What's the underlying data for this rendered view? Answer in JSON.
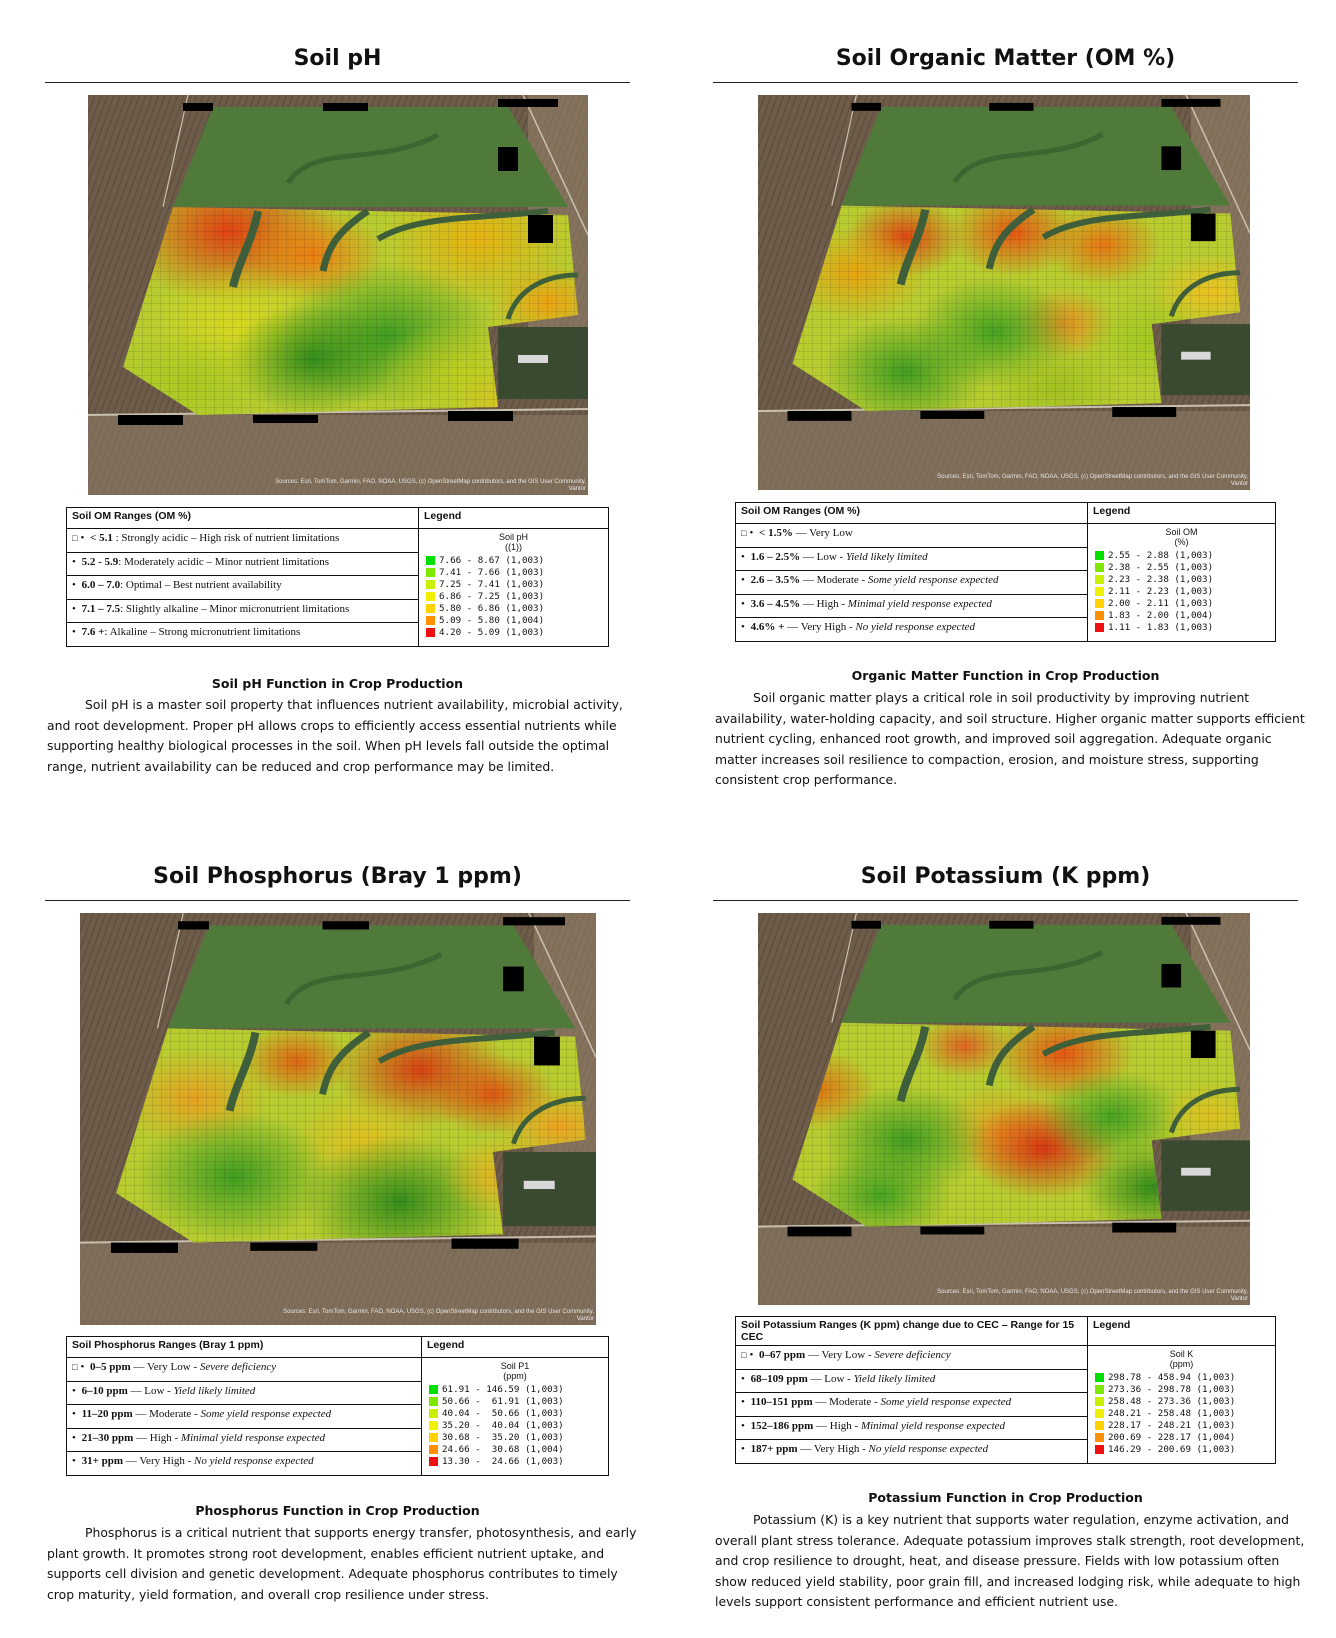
{
  "panels": [
    {
      "title": "Soil pH",
      "ranges_header": "Soil OM Ranges (OM %)",
      "legend_header": "Legend",
      "legend_title": "Soil pH",
      "legend_unit": "((1))",
      "rows": [
        {
          "glyph": "□",
          "bold": "< 5.1",
          "rest": " : Strongly acidic – High risk of nutrient limitations",
          "italic": ""
        },
        {
          "glyph": "",
          "bold": "5.2 - 5.9",
          "rest": ": Moderately acidic – Minor nutrient limitations",
          "italic": ""
        },
        {
          "glyph": "",
          "bold": "6.0 – 7.0",
          "rest": ": Optimal – Best nutrient availability",
          "italic": ""
        },
        {
          "glyph": "",
          "bold": "7.1 – 7.5",
          "rest": ": Slightly alkaline  – Minor micronutrient limitations",
          "italic": ""
        },
        {
          "glyph": "",
          "bold": "7.6 +",
          "rest": ": Alkaline – Strong micronutrient limitations",
          "italic": ""
        }
      ],
      "legend": [
        {
          "color": "#00e000",
          "label": "7.66 - 8.67 (1,003)"
        },
        {
          "color": "#7fe800",
          "label": "7.41 - 7.66 (1,003)"
        },
        {
          "color": "#c8f000",
          "label": "7.25 - 7.41 (1,003)"
        },
        {
          "color": "#f0f000",
          "label": "6.86 - 7.25 (1,003)"
        },
        {
          "color": "#ffd200",
          "label": "5.80 - 6.86 (1,003)"
        },
        {
          "color": "#ff9000",
          "label": "5.09 - 5.80 (1,004)"
        },
        {
          "color": "#ee1010",
          "label": "4.20 - 5.09 (1,003)"
        }
      ],
      "section_title": "Soil pH Function in Crop Production",
      "section_body": "Soil pH is a master soil property that influences nutrient availability, microbial activity, and root development. Proper pH allows crops to efficiently access essential nutrients while supporting healthy biological processes in the soil. When pH levels fall outside the optimal range, nutrient availability can be reduced and crop performance may be limited.",
      "attribution": "Sources: Esri, TomTom, Garmin, FAO, NOAA, USGS, (c) OpenStreetMap contributors, and the GIS User Community, Vantor"
    },
    {
      "title": "Soil Organic Matter (OM %)",
      "ranges_header": "Soil OM Ranges (OM %)",
      "legend_header": "Legend",
      "legend_title": "Soil OM",
      "legend_unit": "(%)",
      "rows": [
        {
          "glyph": "□",
          "bold": "< 1.5%",
          "rest": " — Very Low",
          "italic": ""
        },
        {
          "glyph": "",
          "bold": "1.6 – 2.5%",
          "rest": " — Low - ",
          "italic": "Yield likely limited"
        },
        {
          "glyph": "",
          "bold": "2.6 – 3.5%",
          "rest": " — Moderate - ",
          "italic": "Some yield response expected"
        },
        {
          "glyph": "",
          "bold": "3.6 – 4.5%",
          "rest": " — High - ",
          "italic": "Minimal yield response expected"
        },
        {
          "glyph": "",
          "bold": "4.6% +",
          "rest": " — Very High - ",
          "italic": "No yield response expected"
        }
      ],
      "legend": [
        {
          "color": "#00e000",
          "label": "2.55 - 2.88 (1,003)"
        },
        {
          "color": "#7fe800",
          "label": "2.38 - 2.55 (1,003)"
        },
        {
          "color": "#c8f000",
          "label": "2.23 - 2.38 (1,003)"
        },
        {
          "color": "#f0f000",
          "label": "2.11 - 2.23 (1,003)"
        },
        {
          "color": "#ffd200",
          "label": "2.00 - 2.11 (1,003)"
        },
        {
          "color": "#ff9000",
          "label": "1.83 - 2.00 (1,004)"
        },
        {
          "color": "#ee1010",
          "label": "1.11 - 1.83 (1,003)"
        }
      ],
      "section_title": "Organic Matter Function in Crop Production",
      "section_body": "Soil organic matter plays a critical role in soil productivity by improving nutrient availability, water-holding capacity, and soil structure. Higher organic matter supports efficient nutrient cycling, enhanced root growth, and improved soil aggregation. Adequate organic matter increases soil resilience to compaction, erosion, and moisture stress, supporting consistent crop performance.",
      "attribution": "Sources: Esri, TomTom, Garmin, FAO, NOAA, USGS, (c) OpenStreetMap contributors, and the GIS User Community, Vantor"
    },
    {
      "title": "Soil Phosphorus (Bray 1 ppm)",
      "ranges_header": "Soil Phosphorus Ranges (Bray 1 ppm)",
      "legend_header": "Legend",
      "legend_title": "Soil P1",
      "legend_unit": "(ppm)",
      "rows": [
        {
          "glyph": "□",
          "bold": "0–5 ppm",
          "rest": " — Very Low - ",
          "italic": "Severe deficiency"
        },
        {
          "glyph": "",
          "bold": "6–10 ppm",
          "rest": " — Low - ",
          "italic": "Yield likely limited"
        },
        {
          "glyph": "",
          "bold": "11–20 ppm",
          "rest": " — Moderate - ",
          "italic": "Some yield response expected"
        },
        {
          "glyph": "",
          "bold": "21–30 ppm",
          "rest": " — High - ",
          "italic": "Minimal yield response expected"
        },
        {
          "glyph": "",
          "bold": "31+ ppm",
          "rest": " — Very High - ",
          "italic": "No yield response expected"
        }
      ],
      "legend": [
        {
          "color": "#00e000",
          "label": "61.91 - 146.59 (1,003)"
        },
        {
          "color": "#7fe800",
          "label": "50.66 -  61.91 (1,003)"
        },
        {
          "color": "#c8f000",
          "label": "40.04 -  50.66 (1,003)"
        },
        {
          "color": "#f0f000",
          "label": "35.20 -  40.04 (1,003)"
        },
        {
          "color": "#ffd200",
          "label": "30.68 -  35.20 (1,003)"
        },
        {
          "color": "#ff9000",
          "label": "24.66 -  30.68 (1,004)"
        },
        {
          "color": "#ee1010",
          "label": "13.30 -  24.66 (1,003)"
        }
      ],
      "section_title": "Phosphorus Function in Crop Production",
      "section_body": "Phosphorus is a critical nutrient that supports energy transfer, photosynthesis, and early plant growth. It promotes strong root development, enables efficient nutrient uptake, and supports cell division and genetic development. Adequate phosphorus contributes to timely crop maturity, yield formation, and overall crop resilience under stress.",
      "attribution": "Sources: Esri, TomTom, Garmin, FAO, NOAA, USGS, (c) OpenStreetMap contributors, and the GIS User Community, Vantor"
    },
    {
      "title": "Soil Potassium (K ppm)",
      "ranges_header": "Soil Potassium Ranges (K ppm) change due to CEC – Range for 15 CEC",
      "legend_header": "Legend",
      "legend_title": "Soil K",
      "legend_unit": "(ppm)",
      "rows": [
        {
          "glyph": "□",
          "bold": "0–67 ppm",
          "rest": " — Very Low - ",
          "italic": "Severe deficiency"
        },
        {
          "glyph": "",
          "bold": "68–109 ppm",
          "rest": " — Low - ",
          "italic": "Yield likely limited"
        },
        {
          "glyph": "",
          "bold": "110–151 ppm",
          "rest": " — Moderate - ",
          "italic": "Some yield response expected"
        },
        {
          "glyph": "",
          "bold": "152–186 ppm",
          "rest": " — High - ",
          "italic": "Minimal yield response expected"
        },
        {
          "glyph": "",
          "bold": "187+ ppm",
          "rest": " — Very High - ",
          "italic": "No yield response expected"
        }
      ],
      "legend": [
        {
          "color": "#00e000",
          "label": "298.78 - 458.94 (1,003)"
        },
        {
          "color": "#7fe800",
          "label": "273.36 - 298.78 (1,003)"
        },
        {
          "color": "#c8f000",
          "label": "258.48 - 273.36 (1,003)"
        },
        {
          "color": "#f0f000",
          "label": "248.21 - 258.48 (1,003)"
        },
        {
          "color": "#ffd200",
          "label": "228.17 - 248.21 (1,003)"
        },
        {
          "color": "#ff9000",
          "label": "200.69 - 228.17 (1,004)"
        },
        {
          "color": "#ee1010",
          "label": "146.29 - 200.69 (1,003)"
        }
      ],
      "section_title": "Potassium Function in Crop Production",
      "section_body": "Potassium (K) is a key nutrient that supports water regulation, enzyme activation, and overall plant stress tolerance. Adequate potassium improves stalk strength, root development, and crop resilience to drought, heat, and disease pressure. Fields with low potassium often show reduced yield stability, poor grain fill, and increased lodging risk, while adequate to high levels support consistent performance and efficient nutrient use.",
      "attribution": "Sources: Esri, TomTom, Garmin, FAO, NOAA, USGS, (c) OpenStreetMap contributors, and the GIS User Community, Vantor"
    }
  ]
}
